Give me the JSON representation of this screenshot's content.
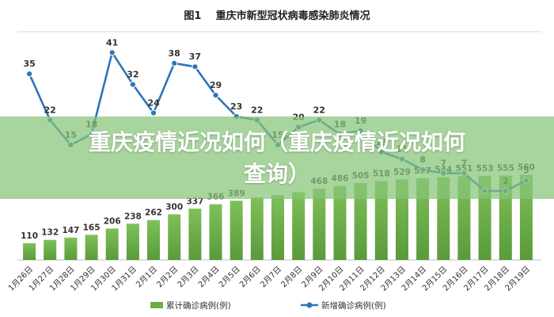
{
  "overlay": {
    "line1": "重庆疫情近况如何（重庆疫情近况如何",
    "line2": "查询）",
    "color": "#8cc47a"
  },
  "chart_data": {
    "type": "bar+line",
    "title": "图1    重庆市新型冠状病毒感染肺炎情况",
    "categories": [
      "1月26日",
      "1月27日",
      "1月28日",
      "1月29日",
      "1月30日",
      "1月31日",
      "2月1日",
      "2月2日",
      "2月3日",
      "2月4日",
      "2月5日",
      "2月6日",
      "2月7日",
      "2月8日",
      "2月9日",
      "2月10日",
      "2月11日",
      "2月12日",
      "2月13日",
      "2月14日",
      "2月15日",
      "2月16日",
      "2月17日",
      "2月18日",
      "2月19日"
    ],
    "series": [
      {
        "name": "累计确诊病例(例)",
        "type": "bar",
        "color": "#70ad47",
        "values": [
          110,
          132,
          147,
          165,
          206,
          238,
          262,
          300,
          337,
          366,
          389,
          411,
          426,
          446,
          468,
          486,
          505,
          518,
          529,
          537,
          544,
          551,
          553,
          555,
          560
        ],
        "value_labels": [
          "110",
          "132",
          "147",
          "165",
          "206",
          "238",
          "262",
          "300",
          "337",
          "366",
          "389",
          "",
          "",
          "",
          "468",
          "486",
          "505",
          "518",
          "529",
          "537",
          "544",
          "551",
          "553",
          "555",
          "560"
        ]
      },
      {
        "name": "新增确诊病例(例)",
        "type": "line",
        "color": "#2e75b6",
        "values": [
          35,
          22,
          15,
          18,
          41,
          32,
          24,
          38,
          37,
          29,
          23,
          22,
          15,
          20,
          22,
          18,
          19,
          13,
          11,
          8,
          7,
          7,
          2,
          2,
          5
        ],
        "value_labels": [
          "35",
          "22",
          "15",
          "18",
          "41",
          "32",
          "24",
          "38",
          "37",
          "29",
          "23",
          "22",
          "15",
          "20",
          "22",
          "18",
          "19",
          "13",
          "11",
          "8",
          "7",
          "7",
          "",
          "2",
          "5"
        ]
      }
    ],
    "legend_position": "bottom",
    "grid": false
  }
}
